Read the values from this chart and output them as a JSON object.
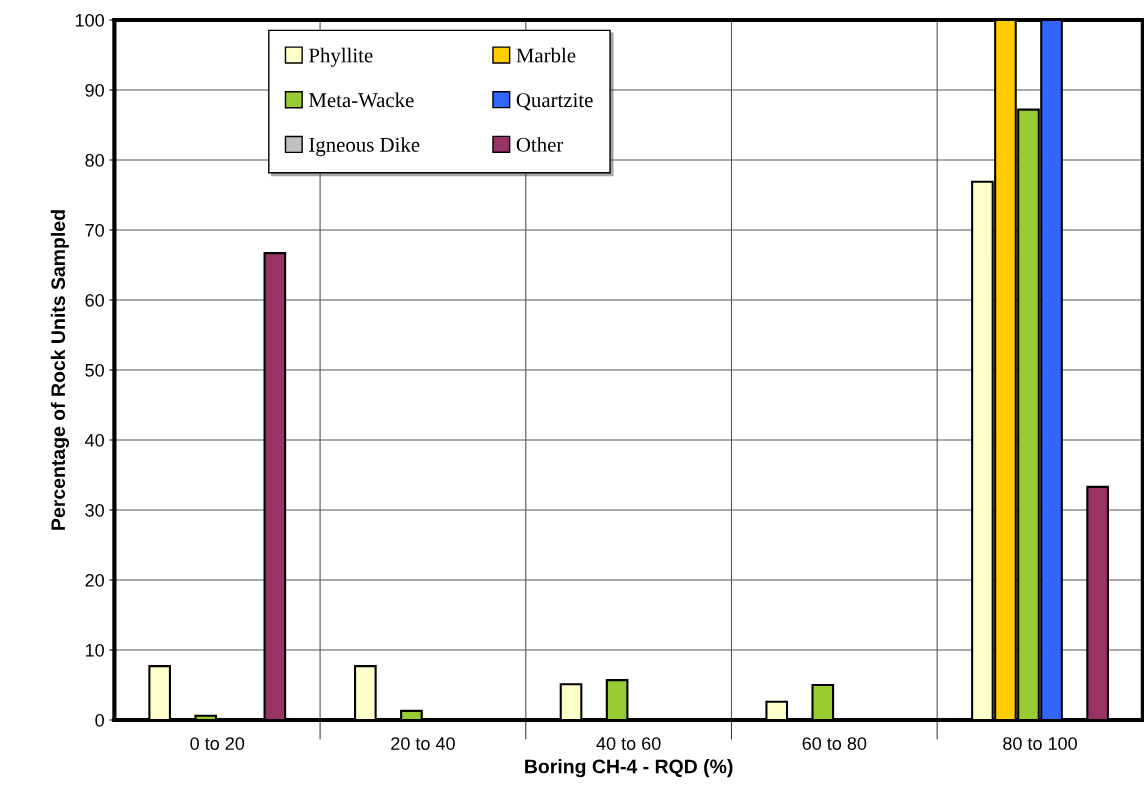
{
  "chart_data": {
    "type": "bar",
    "xlabel": "Boring CH-4 - RQD (%)",
    "ylabel": "Percentage of Rock Units Sampled",
    "categories": [
      "0 to 20",
      "20 to 40",
      "40 to 60",
      "60 to 80",
      "80 to 100"
    ],
    "series": [
      {
        "name": "Phyllite",
        "color": "#ffffcc",
        "values": [
          7.7,
          7.7,
          5.1,
          2.6,
          76.9
        ]
      },
      {
        "name": "Marble",
        "color": "#ffcc00",
        "values": [
          null,
          null,
          null,
          null,
          100
        ]
      },
      {
        "name": "Meta-Wacke",
        "color": "#99cc33",
        "values": [
          0.6,
          1.3,
          5.7,
          5.0,
          87.2
        ]
      },
      {
        "name": "Quartzite",
        "color": "#3366ff",
        "values": [
          null,
          null,
          null,
          null,
          100
        ]
      },
      {
        "name": "Igneous Dike",
        "color": "#c0c0c0",
        "values": [
          null,
          null,
          null,
          null,
          null
        ]
      },
      {
        "name": "Other",
        "color": "#993366",
        "values": [
          66.7,
          null,
          null,
          null,
          33.3
        ]
      }
    ],
    "ylim": [
      0,
      100
    ],
    "yticks": [
      0,
      10,
      20,
      30,
      40,
      50,
      60,
      70,
      80,
      90,
      100
    ],
    "grid": true,
    "legend": "top left"
  }
}
